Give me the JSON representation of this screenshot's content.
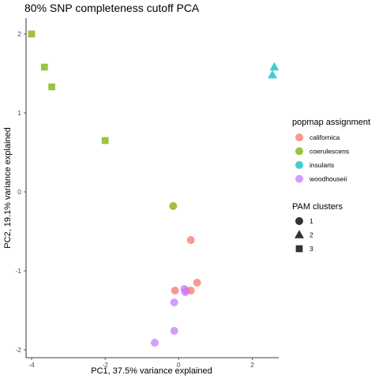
{
  "chart_data": {
    "type": "scatter",
    "title": "80% SNP completeness cutoff PCA",
    "xlabel": "PC1, 37.5% variance explained",
    "ylabel": "PC2, 19.1% variance explained",
    "xlim": [
      -4.15,
      2.72
    ],
    "ylim": [
      -2.1,
      2.2
    ],
    "xticks": [
      -4,
      -2,
      0,
      2
    ],
    "yticks": [
      -2,
      -1,
      0,
      1,
      2
    ],
    "grid": false,
    "color_legend": {
      "title": "popmap assignment",
      "entries": [
        {
          "label": "californica",
          "color": "#F8766D"
        },
        {
          "label": "coerulescens",
          "color": "#7CAE00"
        },
        {
          "label": "insularis",
          "color": "#00BFC4"
        },
        {
          "label": "woodhouseii",
          "color": "#C77CFF"
        }
      ]
    },
    "shape_legend": {
      "title": "PAM clusters",
      "entries": [
        {
          "label": "1",
          "shape": "circle"
        },
        {
          "label": "2",
          "shape": "triangle"
        },
        {
          "label": "3",
          "shape": "square"
        }
      ]
    },
    "points": [
      {
        "x": -4.0,
        "y": 2.0,
        "group": "coerulescens",
        "cluster": "3"
      },
      {
        "x": -3.65,
        "y": 1.58,
        "group": "coerulescens",
        "cluster": "3"
      },
      {
        "x": -3.45,
        "y": 1.33,
        "group": "coerulescens",
        "cluster": "3"
      },
      {
        "x": -2.0,
        "y": 0.65,
        "group": "coerulescens",
        "cluster": "3"
      },
      {
        "x": 2.6,
        "y": 1.58,
        "group": "insularis",
        "cluster": "2"
      },
      {
        "x": 2.55,
        "y": 1.48,
        "group": "insularis",
        "cluster": "2"
      },
      {
        "x": -0.15,
        "y": -0.18,
        "group": "coerulescens",
        "cluster": "1"
      },
      {
        "x": 0.33,
        "y": -0.61,
        "group": "californica",
        "cluster": "1"
      },
      {
        "x": 0.5,
        "y": -1.15,
        "group": "californica",
        "cluster": "1"
      },
      {
        "x": 0.33,
        "y": -1.25,
        "group": "californica",
        "cluster": "1"
      },
      {
        "x": -0.1,
        "y": -1.25,
        "group": "californica",
        "cluster": "1"
      },
      {
        "x": 0.2,
        "y": -1.25,
        "group": "californica",
        "cluster": "1"
      },
      {
        "x": 0.15,
        "y": -1.23,
        "group": "woodhouseii",
        "cluster": "1"
      },
      {
        "x": 0.18,
        "y": -1.27,
        "group": "woodhouseii",
        "cluster": "1"
      },
      {
        "x": -0.12,
        "y": -1.4,
        "group": "woodhouseii",
        "cluster": "1"
      },
      {
        "x": -0.12,
        "y": -1.76,
        "group": "woodhouseii",
        "cluster": "1"
      },
      {
        "x": -0.65,
        "y": -1.91,
        "group": "woodhouseii",
        "cluster": "1"
      }
    ]
  }
}
